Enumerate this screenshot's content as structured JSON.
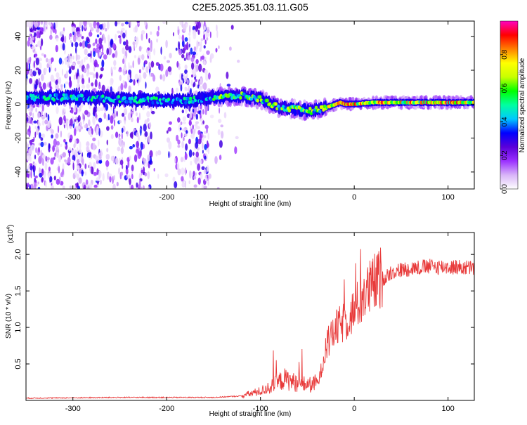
{
  "figure_title": "C2E5.2025.351.03.11.G05",
  "chart_data": [
    {
      "type": "heatmap",
      "title": "C2E5.2025.351.03.11.G05",
      "xlabel": "Height of straight line (km)",
      "ylabel": "Frequency (Hz)",
      "xlim": [
        -350,
        128
      ],
      "ylim": [
        -50,
        49
      ],
      "xticks": [
        -300,
        -200,
        -100,
        0,
        100
      ],
      "yticks": [
        -40,
        -20,
        0,
        20,
        40
      ],
      "colorbar": {
        "label": "Normalized spectral amplitude",
        "range": [
          0,
          1
        ],
        "ticks": [
          0.0,
          0.2,
          0.4,
          0.6,
          0.8
        ],
        "colors": [
          "#ffffff",
          "#d8b4f8",
          "#9b30ff",
          "#5a00d9",
          "#0000ff",
          "#00c8ff",
          "#00ffa0",
          "#00ff00",
          "#c8ff00",
          "#ffff00",
          "#ff8000",
          "#ff0000",
          "#ff00c0"
        ]
      },
      "ridge": {
        "x": [
          -350,
          -300,
          -250,
          -200,
          -180,
          -150,
          -120,
          -100,
          -80,
          -60,
          -45,
          -30,
          -15,
          -10,
          0,
          20,
          50,
          80,
          128
        ],
        "freq": [
          4,
          4,
          3,
          2,
          2,
          4,
          5,
          3,
          -2,
          -3,
          -4,
          -2,
          1,
          0,
          0,
          1,
          1,
          1,
          1
        ]
      }
    },
    {
      "type": "line",
      "title": "",
      "xlabel": "Height of straight line (km)",
      "ylabel": "SNR (10 * v/v)",
      "scale_label": "(x10",
      "scale_exponent": "4",
      "scale_close": ")",
      "xlim": [
        -350,
        128
      ],
      "ylim": [
        0,
        2.3
      ],
      "xticks": [
        -300,
        -200,
        -100,
        0,
        100
      ],
      "yticks": [
        0.5,
        1.0,
        1.5,
        2.0
      ],
      "color": "#e83a3a",
      "envelope": {
        "x": [
          -350,
          -250,
          -150,
          -120,
          -100,
          -85,
          -75,
          -60,
          -45,
          -38,
          -30,
          -20,
          -10,
          0,
          10,
          25,
          40,
          60,
          80,
          100,
          128
        ],
        "y": [
          0.03,
          0.04,
          0.04,
          0.06,
          0.12,
          0.2,
          0.28,
          0.22,
          0.2,
          0.25,
          0.7,
          0.95,
          1.05,
          1.2,
          1.4,
          1.6,
          1.75,
          1.8,
          1.82,
          1.82,
          1.8
        ]
      }
    }
  ]
}
